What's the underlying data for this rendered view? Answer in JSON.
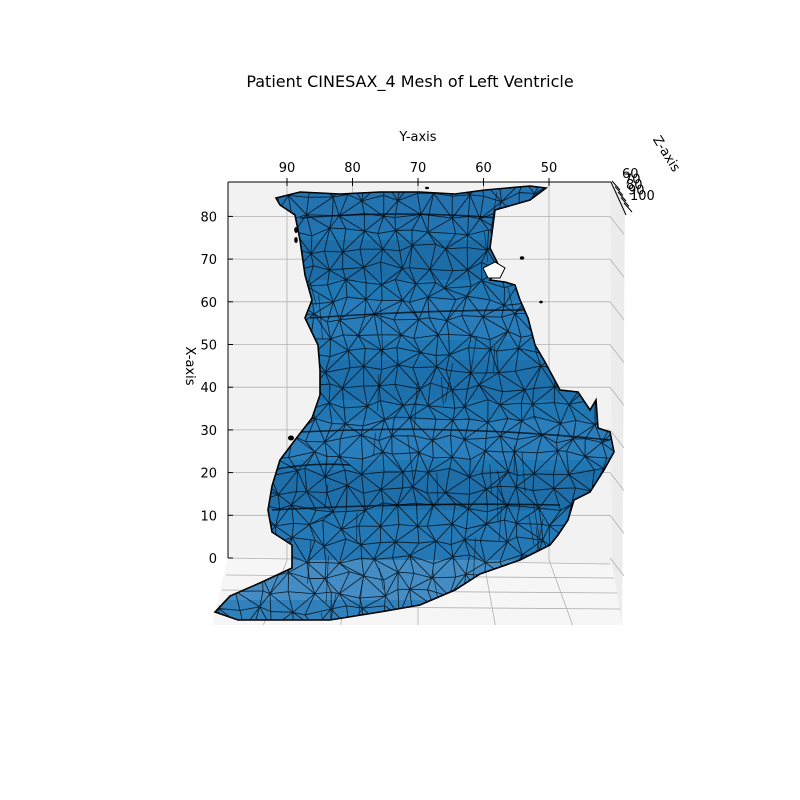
{
  "chart_data": {
    "type": "3d-mesh",
    "title": "Patient CINESAX_4 Mesh of Left Ventricle",
    "xlabel": "X-axis",
    "ylabel": "Y-axis",
    "zlabel": "Z-axis",
    "x_ticks": [
      "0",
      "10",
      "20",
      "30",
      "40",
      "50",
      "60",
      "70",
      "80"
    ],
    "y_ticks": [
      "90",
      "80",
      "70",
      "60",
      "50"
    ],
    "z_ticks": [
      "60",
      "70",
      "80",
      "90",
      "100"
    ],
    "xlim": [
      0,
      88
    ],
    "ylim": [
      99,
      38
    ],
    "zlim": [
      57,
      103
    ],
    "mesh_face_color": "#1f77b4",
    "mesh_edge_color": "#000000",
    "pane_color": "#f2f2f2",
    "grid": true
  }
}
